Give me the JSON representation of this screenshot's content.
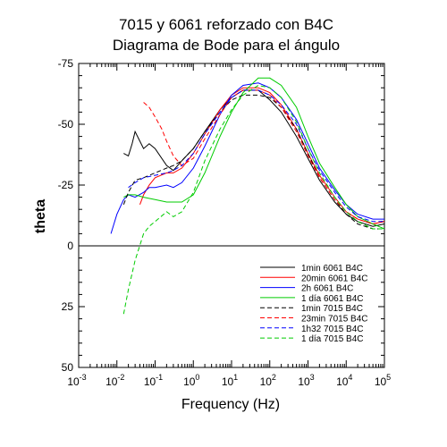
{
  "chart_data": {
    "type": "line",
    "title": "7015 y 6061 reforzado con B4C",
    "subtitle": "Diagrama de Bode para el ángulo",
    "xlabel": "Frequency (Hz)",
    "ylabel": "theta",
    "x_scale": "log",
    "xlim": [
      0.001,
      100000
    ],
    "ylim": [
      50,
      -75
    ],
    "x_ticks": [
      {
        "base": "10",
        "exp": "-3"
      },
      {
        "base": "10",
        "exp": "-2"
      },
      {
        "base": "10",
        "exp": "-1"
      },
      {
        "base": "10",
        "exp": "0"
      },
      {
        "base": "10",
        "exp": "1"
      },
      {
        "base": "10",
        "exp": "2"
      },
      {
        "base": "10",
        "exp": "3"
      },
      {
        "base": "10",
        "exp": "4"
      },
      {
        "base": "10",
        "exp": "5"
      }
    ],
    "y_ticks": [
      "-75",
      "-50",
      "-25",
      "0",
      "25",
      "50"
    ],
    "legend_position": "bottom-right",
    "zero_line": true,
    "series": [
      {
        "name": "1min 6061 B4C",
        "color": "#000000",
        "dash": "solid",
        "points": [
          [
            0.015,
            -38
          ],
          [
            0.02,
            -37
          ],
          [
            0.025,
            -42
          ],
          [
            0.03,
            -47
          ],
          [
            0.04,
            -43
          ],
          [
            0.05,
            -40
          ],
          [
            0.07,
            -42
          ],
          [
            0.1,
            -40
          ],
          [
            0.2,
            -33
          ],
          [
            0.3,
            -31
          ],
          [
            0.5,
            -35
          ],
          [
            1,
            -40
          ],
          [
            2,
            -47
          ],
          [
            5,
            -56
          ],
          [
            10,
            -61
          ],
          [
            20,
            -64
          ],
          [
            50,
            -64
          ],
          [
            100,
            -60
          ],
          [
            200,
            -55
          ],
          [
            500,
            -45
          ],
          [
            1000,
            -36
          ],
          [
            2000,
            -27
          ],
          [
            5000,
            -18
          ],
          [
            10000,
            -13
          ],
          [
            20000,
            -10
          ],
          [
            50000,
            -8
          ],
          [
            100000,
            -9
          ]
        ]
      },
      {
        "name": "20min 6061 B4C",
        "color": "#ff0000",
        "dash": "solid",
        "points": [
          [
            0.04,
            -17
          ],
          [
            0.05,
            -21
          ],
          [
            0.07,
            -25
          ],
          [
            0.1,
            -28
          ],
          [
            0.2,
            -30
          ],
          [
            0.3,
            -30
          ],
          [
            0.5,
            -32
          ],
          [
            1,
            -38
          ],
          [
            2,
            -46
          ],
          [
            5,
            -56
          ],
          [
            10,
            -62
          ],
          [
            20,
            -65
          ],
          [
            50,
            -65
          ],
          [
            100,
            -63
          ],
          [
            200,
            -58
          ],
          [
            500,
            -48
          ],
          [
            1000,
            -38
          ],
          [
            2000,
            -29
          ],
          [
            5000,
            -20
          ],
          [
            10000,
            -14
          ],
          [
            20000,
            -11
          ],
          [
            50000,
            -9
          ],
          [
            100000,
            -10
          ]
        ]
      },
      {
        "name": "2h 6061 B4C",
        "color": "#0000ff",
        "dash": "solid",
        "points": [
          [
            0.007,
            -5
          ],
          [
            0.01,
            -13
          ],
          [
            0.015,
            -19
          ],
          [
            0.02,
            -21
          ],
          [
            0.03,
            -20
          ],
          [
            0.05,
            -22
          ],
          [
            0.07,
            -24
          ],
          [
            0.1,
            -24
          ],
          [
            0.2,
            -25
          ],
          [
            0.3,
            -24
          ],
          [
            0.5,
            -26
          ],
          [
            1,
            -32
          ],
          [
            2,
            -41
          ],
          [
            5,
            -54
          ],
          [
            10,
            -62
          ],
          [
            20,
            -66
          ],
          [
            50,
            -67
          ],
          [
            100,
            -65
          ],
          [
            200,
            -61
          ],
          [
            500,
            -52
          ],
          [
            1000,
            -42
          ],
          [
            2000,
            -32
          ],
          [
            5000,
            -23
          ],
          [
            10000,
            -17
          ],
          [
            20000,
            -13
          ],
          [
            50000,
            -11
          ],
          [
            100000,
            -11
          ]
        ]
      },
      {
        "name": "1 día 6061 B4C",
        "color": "#00cc00",
        "dash": "solid",
        "points": [
          [
            0.015,
            -20
          ],
          [
            0.02,
            -21
          ],
          [
            0.03,
            -21
          ],
          [
            0.05,
            -20
          ],
          [
            0.1,
            -19
          ],
          [
            0.2,
            -18
          ],
          [
            0.3,
            -18
          ],
          [
            0.5,
            -18
          ],
          [
            1,
            -21
          ],
          [
            2,
            -30
          ],
          [
            5,
            -45
          ],
          [
            10,
            -55
          ],
          [
            20,
            -63
          ],
          [
            50,
            -69
          ],
          [
            100,
            -69
          ],
          [
            200,
            -66
          ],
          [
            500,
            -57
          ],
          [
            1000,
            -45
          ],
          [
            2000,
            -34
          ],
          [
            5000,
            -24
          ],
          [
            10000,
            -17
          ],
          [
            20000,
            -12
          ],
          [
            50000,
            -9
          ],
          [
            100000,
            -7
          ]
        ]
      },
      {
        "name": "1min 7015 B4C",
        "color": "#000000",
        "dash": "dashed",
        "points": [
          [
            0.015,
            -17
          ],
          [
            0.02,
            -22
          ],
          [
            0.03,
            -27
          ],
          [
            0.05,
            -28
          ],
          [
            0.1,
            -30
          ],
          [
            0.2,
            -32
          ],
          [
            0.3,
            -33
          ],
          [
            0.5,
            -35
          ],
          [
            1,
            -40
          ],
          [
            2,
            -47
          ],
          [
            5,
            -55
          ],
          [
            10,
            -60
          ],
          [
            20,
            -62
          ],
          [
            50,
            -62
          ],
          [
            100,
            -61
          ],
          [
            200,
            -57
          ],
          [
            500,
            -48
          ],
          [
            1000,
            -38
          ],
          [
            2000,
            -28
          ],
          [
            5000,
            -19
          ],
          [
            10000,
            -13
          ],
          [
            20000,
            -9
          ],
          [
            50000,
            -7
          ],
          [
            100000,
            -7
          ]
        ]
      },
      {
        "name": "23min 7015 B4C",
        "color": "#ff0000",
        "dash": "dashed",
        "points": [
          [
            0.05,
            -59
          ],
          [
            0.07,
            -57
          ],
          [
            0.1,
            -53
          ],
          [
            0.15,
            -48
          ],
          [
            0.2,
            -43
          ],
          [
            0.3,
            -37
          ],
          [
            0.5,
            -33
          ],
          [
            1,
            -36
          ],
          [
            2,
            -44
          ],
          [
            5,
            -54
          ],
          [
            10,
            -61
          ],
          [
            20,
            -64
          ],
          [
            50,
            -64
          ],
          [
            100,
            -62
          ],
          [
            200,
            -57
          ],
          [
            500,
            -47
          ],
          [
            1000,
            -37
          ],
          [
            2000,
            -28
          ],
          [
            5000,
            -19
          ],
          [
            10000,
            -14
          ],
          [
            20000,
            -11
          ],
          [
            50000,
            -9
          ],
          [
            100000,
            -10
          ]
        ]
      },
      {
        "name": "1h32 7015 B4C",
        "color": "#0000ff",
        "dash": "dashed",
        "points": [
          [
            0.02,
            -24
          ],
          [
            0.03,
            -26
          ],
          [
            0.05,
            -28
          ],
          [
            0.1,
            -29
          ],
          [
            0.2,
            -30
          ],
          [
            0.3,
            -31
          ],
          [
            0.5,
            -33
          ],
          [
            1,
            -38
          ],
          [
            2,
            -46
          ],
          [
            5,
            -55
          ],
          [
            10,
            -61
          ],
          [
            20,
            -64
          ],
          [
            50,
            -64
          ],
          [
            100,
            -62
          ],
          [
            200,
            -58
          ],
          [
            500,
            -50
          ],
          [
            1000,
            -40
          ],
          [
            2000,
            -31
          ],
          [
            5000,
            -22
          ],
          [
            10000,
            -16
          ],
          [
            20000,
            -12
          ],
          [
            50000,
            -10
          ],
          [
            100000,
            -10
          ]
        ]
      },
      {
        "name": "1 día 7015 B4C",
        "color": "#00cc00",
        "dash": "dashed",
        "points": [
          [
            0.015,
            28
          ],
          [
            0.02,
            18
          ],
          [
            0.03,
            6
          ],
          [
            0.05,
            -5
          ],
          [
            0.07,
            -8
          ],
          [
            0.1,
            -10
          ],
          [
            0.2,
            -14
          ],
          [
            0.3,
            -12
          ],
          [
            0.5,
            -14
          ],
          [
            1,
            -22
          ],
          [
            2,
            -35
          ],
          [
            5,
            -48
          ],
          [
            10,
            -56
          ],
          [
            20,
            -62
          ],
          [
            50,
            -66
          ],
          [
            100,
            -65
          ],
          [
            200,
            -61
          ],
          [
            500,
            -51
          ],
          [
            1000,
            -40
          ],
          [
            2000,
            -30
          ],
          [
            5000,
            -20
          ],
          [
            10000,
            -14
          ],
          [
            20000,
            -10
          ],
          [
            50000,
            -7
          ],
          [
            100000,
            -7
          ]
        ]
      }
    ]
  }
}
